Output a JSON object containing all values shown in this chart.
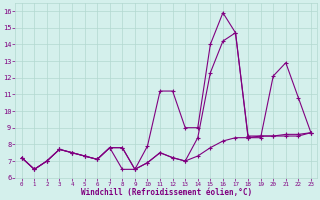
{
  "background_color": "#d4f0ec",
  "grid_color": "#b2d8d0",
  "line_color": "#800080",
  "xlabel": "Windchill (Refroidissement éolien,°C)",
  "xlim": [
    -0.5,
    23.5
  ],
  "ylim": [
    6,
    16.5
  ],
  "xticks": [
    0,
    1,
    2,
    3,
    4,
    5,
    6,
    7,
    8,
    9,
    10,
    11,
    12,
    13,
    14,
    15,
    16,
    17,
    18,
    19,
    20,
    21,
    22,
    23
  ],
  "yticks": [
    6,
    7,
    8,
    9,
    10,
    11,
    12,
    13,
    14,
    15,
    16
  ],
  "series": [
    [
      7.2,
      6.5,
      7.0,
      7.7,
      7.5,
      7.3,
      7.1,
      7.8,
      7.8,
      6.5,
      6.9,
      7.5,
      7.2,
      7.0,
      7.3,
      7.8,
      8.2,
      8.4,
      8.4,
      8.5,
      8.5,
      8.6,
      8.6,
      8.7
    ],
    [
      7.2,
      6.5,
      7.0,
      7.7,
      7.5,
      7.3,
      7.1,
      7.8,
      7.8,
      6.5,
      7.9,
      11.2,
      11.2,
      9.0,
      9.0,
      14.0,
      15.9,
      14.7,
      8.5,
      8.5,
      8.5,
      8.5,
      8.5,
      8.7
    ],
    [
      7.2,
      6.5,
      7.0,
      7.7,
      7.5,
      7.3,
      7.1,
      7.8,
      6.5,
      6.5,
      6.9,
      7.5,
      7.2,
      7.0,
      8.4,
      12.3,
      14.2,
      14.7,
      8.4,
      8.4,
      12.1,
      12.9,
      10.8,
      8.7
    ]
  ]
}
